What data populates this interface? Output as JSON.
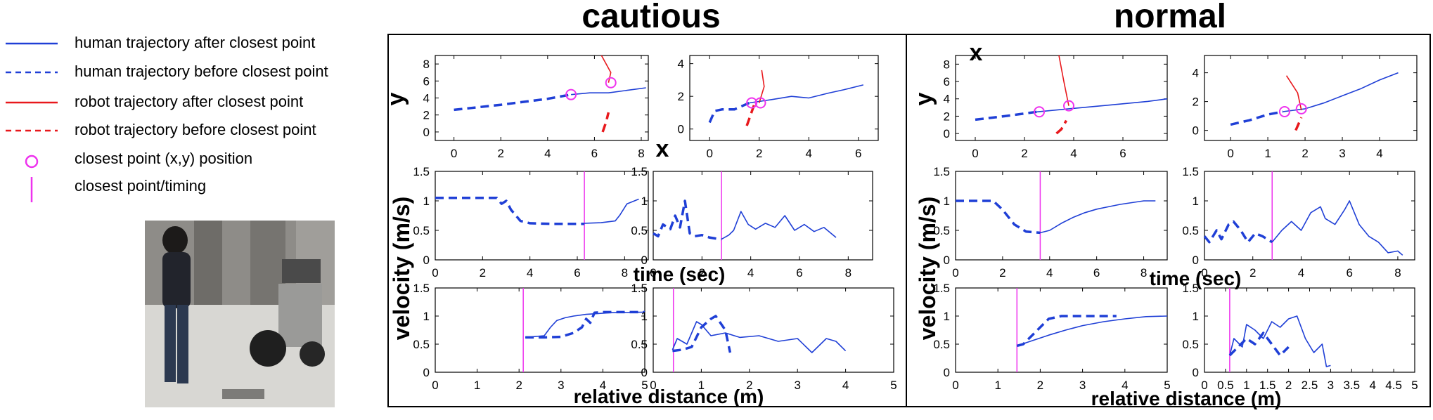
{
  "legend": {
    "items": [
      {
        "label": "human trajectory after closest point",
        "color": "#1f3fd6",
        "style": "solid"
      },
      {
        "label": "human trajectory before closest point",
        "color": "#1f3fd6",
        "style": "dashed"
      },
      {
        "label": "robot trajectory after closest point",
        "color": "#e8181c",
        "style": "solid"
      },
      {
        "label": "robot trajectory before closest point",
        "color": "#e8181c",
        "style": "dashed"
      },
      {
        "label": "closest point (x,y) position",
        "color": "#ee33ee",
        "style": "circle"
      },
      {
        "label": "closest point/timing",
        "color": "#ee33ee",
        "style": "vline"
      }
    ]
  },
  "panels": {
    "cautious_title": "cautious",
    "normal_title": "normal"
  },
  "axis_labels": {
    "y_traj": "y",
    "x_traj": "x",
    "velocity": "velocity (m/s)",
    "time": "time (sec)",
    "distance": "relative distance (m)"
  },
  "colors": {
    "human": "#1f3fd6",
    "robot": "#e8181c",
    "closest": "#ee33ee"
  },
  "chart_data": [
    {
      "id": "cautious-traj-1",
      "type": "line",
      "panel": "cautious",
      "xlim": [
        -0.8,
        8.3
      ],
      "ylim": [
        -1,
        9
      ],
      "xticks": [
        0,
        2,
        4,
        6,
        8
      ],
      "yticks": [
        0,
        2,
        4,
        6,
        8
      ],
      "series": [
        {
          "role": "human-before",
          "x": [
            0,
            2,
            4,
            5
          ],
          "y": [
            2.6,
            3.2,
            3.9,
            4.4
          ]
        },
        {
          "role": "human-after",
          "x": [
            5,
            5.8,
            6.6,
            7.4,
            8.2
          ],
          "y": [
            4.4,
            4.6,
            4.6,
            4.9,
            5.2
          ]
        },
        {
          "role": "robot-before",
          "x": [
            6.35,
            6.5,
            6.6
          ],
          "y": [
            0.0,
            1.2,
            2.3
          ]
        },
        {
          "role": "robot-after",
          "x": [
            6.6,
            6.7,
            6.5,
            6.3
          ],
          "y": [
            5.8,
            7.0,
            8.0,
            9.0
          ]
        }
      ],
      "closest_points": [
        {
          "x": 5.0,
          "y": 4.4
        },
        {
          "x": 6.7,
          "y": 5.8
        }
      ]
    },
    {
      "id": "cautious-traj-2",
      "type": "line",
      "panel": "cautious",
      "xlim": [
        -0.8,
        6.8
      ],
      "ylim": [
        -0.7,
        4.5
      ],
      "xticks": [
        0,
        2,
        4,
        6
      ],
      "yticks": [
        0,
        2,
        4
      ],
      "series": [
        {
          "role": "human-before",
          "x": [
            0,
            0.2,
            0.5,
            1.0,
            1.6
          ],
          "y": [
            0.4,
            1.1,
            1.2,
            1.2,
            1.6
          ]
        },
        {
          "role": "human-after",
          "x": [
            1.6,
            2.5,
            3.3,
            4.0,
            4.8,
            5.4,
            6.2
          ],
          "y": [
            1.6,
            1.8,
            2.0,
            1.9,
            2.2,
            2.4,
            2.7
          ]
        },
        {
          "role": "robot-before",
          "x": [
            1.5,
            1.8
          ],
          "y": [
            0.2,
            1.5
          ]
        },
        {
          "role": "robot-after",
          "x": [
            2.0,
            2.2,
            2.1
          ],
          "y": [
            1.6,
            2.6,
            3.6
          ]
        }
      ],
      "closest_points": [
        {
          "x": 1.7,
          "y": 1.6
        },
        {
          "x": 2.05,
          "y": 1.6
        }
      ]
    },
    {
      "id": "cautious-vel-time-1",
      "type": "line",
      "panel": "cautious",
      "xlim": [
        0,
        9
      ],
      "ylim": [
        0,
        1.5
      ],
      "xticks": [
        0,
        2,
        4,
        6,
        8
      ],
      "yticks": [
        0,
        0.5,
        1,
        1.5
      ],
      "series": [
        {
          "role": "human-before",
          "x": [
            0,
            1,
            2,
            2.6,
            2.8,
            3.0,
            3.2,
            3.6,
            4.0,
            5.0,
            6.3
          ],
          "y": [
            1.05,
            1.05,
            1.05,
            1.05,
            0.95,
            1.0,
            0.85,
            0.66,
            0.62,
            0.61,
            0.61
          ]
        },
        {
          "role": "human-after",
          "x": [
            6.3,
            7.0,
            7.6,
            7.8,
            8.1,
            8.6
          ],
          "y": [
            0.62,
            0.63,
            0.66,
            0.76,
            0.95,
            1.03
          ]
        }
      ],
      "timing": 6.3
    },
    {
      "id": "cautious-vel-time-2",
      "type": "line",
      "panel": "cautious",
      "xlim": [
        0,
        9
      ],
      "ylim": [
        0,
        1.5
      ],
      "xticks": [
        0,
        2,
        4,
        6,
        8
      ],
      "yticks": [
        0,
        0.5,
        1,
        1.5
      ],
      "series": [
        {
          "role": "human-before",
          "x": [
            0,
            0.2,
            0.4,
            0.7,
            0.9,
            1.1,
            1.3,
            1.5,
            1.7,
            2.0,
            2.3,
            2.6,
            2.8
          ],
          "y": [
            0.45,
            0.4,
            0.6,
            0.52,
            0.75,
            0.55,
            1.0,
            0.45,
            0.4,
            0.42,
            0.38,
            0.36,
            0.35
          ]
        },
        {
          "role": "human-after",
          "x": [
            2.8,
            3.1,
            3.3,
            3.6,
            3.9,
            4.2,
            4.6,
            5.0,
            5.4,
            5.8,
            6.2,
            6.6,
            7.0,
            7.5
          ],
          "y": [
            0.35,
            0.42,
            0.5,
            0.82,
            0.6,
            0.52,
            0.62,
            0.55,
            0.75,
            0.5,
            0.6,
            0.48,
            0.55,
            0.38
          ]
        }
      ],
      "timing": 2.8
    },
    {
      "id": "cautious-vel-dist-1",
      "type": "line",
      "panel": "cautious",
      "xlim": [
        0,
        5
      ],
      "ylim": [
        0,
        1.5
      ],
      "xticks": [
        0,
        1,
        2,
        3,
        4,
        5
      ],
      "yticks": [
        0,
        0.5,
        1,
        1.5
      ],
      "series": [
        {
          "role": "human-before",
          "x": [
            2.15,
            2.6,
            3.0,
            3.3,
            3.5,
            3.6,
            3.7,
            3.8,
            4.0,
            4.4,
            5.0
          ],
          "y": [
            0.62,
            0.62,
            0.63,
            0.7,
            0.8,
            0.95,
            0.88,
            1.06,
            1.07,
            1.07,
            1.07
          ]
        },
        {
          "role": "human-after",
          "x": [
            2.15,
            2.6,
            2.75,
            2.9,
            3.1,
            3.3,
            3.6,
            4.2,
            5.0
          ],
          "y": [
            0.62,
            0.65,
            0.8,
            0.92,
            0.97,
            1.0,
            1.03,
            1.06,
            1.07
          ]
        }
      ],
      "timing": 2.1
    },
    {
      "id": "cautious-vel-dist-2",
      "type": "line",
      "panel": "cautious",
      "xlim": [
        0,
        5
      ],
      "ylim": [
        0,
        1.5
      ],
      "xticks": [
        0,
        1,
        2,
        3,
        4,
        5
      ],
      "yticks": [
        0,
        0.5,
        1,
        1.5
      ],
      "series": [
        {
          "role": "human-before",
          "x": [
            0.4,
            0.6,
            0.8,
            1.0,
            1.2,
            1.3,
            1.5,
            1.6
          ],
          "y": [
            0.38,
            0.4,
            0.45,
            0.8,
            0.95,
            1.0,
            0.75,
            0.35
          ]
        },
        {
          "role": "human-after",
          "x": [
            0.4,
            0.5,
            0.7,
            0.9,
            1.0,
            1.2,
            1.5,
            1.8,
            2.2,
            2.6,
            3.0,
            3.3,
            3.6,
            3.8,
            4.0
          ],
          "y": [
            0.4,
            0.6,
            0.5,
            0.9,
            0.85,
            0.65,
            0.7,
            0.62,
            0.65,
            0.55,
            0.6,
            0.35,
            0.6,
            0.55,
            0.38
          ]
        }
      ],
      "timing": 0.42
    },
    {
      "id": "normal-traj-1",
      "type": "line",
      "panel": "normal",
      "xlim": [
        -0.8,
        7.8
      ],
      "ylim": [
        -0.8,
        9
      ],
      "xticks": [
        0,
        2,
        4,
        6
      ],
      "yticks": [
        0,
        2,
        4,
        6,
        8
      ],
      "series": [
        {
          "role": "human-before",
          "x": [
            0,
            1.2,
            2.5
          ],
          "y": [
            1.6,
            2.0,
            2.5
          ]
        },
        {
          "role": "human-after",
          "x": [
            2.5,
            4.0,
            5.5,
            7.0,
            7.8
          ],
          "y": [
            2.5,
            2.9,
            3.3,
            3.7,
            4.0
          ]
        },
        {
          "role": "robot-before",
          "x": [
            3.3,
            3.5,
            3.7
          ],
          "y": [
            0.0,
            0.5,
            1.5
          ]
        },
        {
          "role": "robot-after",
          "x": [
            3.8,
            3.6,
            3.4
          ],
          "y": [
            3.2,
            6.0,
            9.0
          ]
        }
      ],
      "closest_points": [
        {
          "x": 2.6,
          "y": 2.5
        },
        {
          "x": 3.8,
          "y": 3.2
        }
      ]
    },
    {
      "id": "normal-traj-2",
      "type": "line",
      "panel": "normal",
      "xlim": [
        -0.7,
        5.0
      ],
      "ylim": [
        -0.7,
        5.2
      ],
      "xticks": [
        0,
        1,
        2,
        3,
        4
      ],
      "yticks": [
        0,
        2,
        4
      ],
      "series": [
        {
          "role": "human-before",
          "x": [
            0,
            0.5,
            1.0,
            1.4
          ],
          "y": [
            0.4,
            0.7,
            1.1,
            1.3
          ]
        },
        {
          "role": "human-after",
          "x": [
            1.4,
            2.0,
            2.5,
            3.0,
            3.5,
            4.0,
            4.5
          ],
          "y": [
            1.3,
            1.5,
            1.9,
            2.4,
            2.9,
            3.5,
            4.0
          ]
        },
        {
          "role": "robot-before",
          "x": [
            1.75,
            1.9
          ],
          "y": [
            0.0,
            0.9
          ]
        },
        {
          "role": "robot-after",
          "x": [
            1.9,
            1.8,
            1.5
          ],
          "y": [
            1.4,
            2.6,
            3.8
          ]
        }
      ],
      "closest_points": [
        {
          "x": 1.45,
          "y": 1.3
        },
        {
          "x": 1.9,
          "y": 1.5
        }
      ]
    },
    {
      "id": "normal-vel-time-1",
      "type": "line",
      "panel": "normal",
      "xlim": [
        0,
        9
      ],
      "ylim": [
        0,
        1.5
      ],
      "xticks": [
        0,
        2,
        4,
        6,
        8
      ],
      "yticks": [
        0,
        0.5,
        1,
        1.5
      ],
      "series": [
        {
          "role": "human-before",
          "x": [
            0,
            0.8,
            1.6,
            2.0,
            2.5,
            3.0,
            3.6
          ],
          "y": [
            1.0,
            1.0,
            1.0,
            0.85,
            0.6,
            0.48,
            0.46
          ]
        },
        {
          "role": "human-after",
          "x": [
            3.6,
            4.0,
            4.5,
            5.0,
            5.5,
            6.0,
            6.5,
            7.0,
            7.5,
            8.0,
            8.5
          ],
          "y": [
            0.46,
            0.5,
            0.62,
            0.72,
            0.8,
            0.86,
            0.9,
            0.94,
            0.97,
            1.0,
            1.0
          ]
        }
      ],
      "timing": 3.6
    },
    {
      "id": "normal-vel-time-2",
      "type": "line",
      "panel": "normal",
      "xlim": [
        0,
        8.7
      ],
      "ylim": [
        0,
        1.5
      ],
      "xticks": [
        0,
        2,
        4,
        6,
        8
      ],
      "yticks": [
        0,
        0.5,
        1,
        1.5
      ],
      "series": [
        {
          "role": "human-before",
          "x": [
            0,
            0.2,
            0.5,
            0.7,
            1.0,
            1.2,
            1.5,
            1.8,
            2.1,
            2.4,
            2.8
          ],
          "y": [
            0.4,
            0.3,
            0.5,
            0.35,
            0.6,
            0.65,
            0.5,
            0.3,
            0.45,
            0.4,
            0.3
          ]
        },
        {
          "role": "human-after",
          "x": [
            2.8,
            3.2,
            3.6,
            4.0,
            4.4,
            4.8,
            5.0,
            5.4,
            5.8,
            6.0,
            6.4,
            6.8,
            7.2,
            7.6,
            8.0,
            8.2
          ],
          "y": [
            0.3,
            0.5,
            0.65,
            0.5,
            0.8,
            0.9,
            0.7,
            0.6,
            0.85,
            1.0,
            0.6,
            0.4,
            0.3,
            0.12,
            0.15,
            0.08
          ]
        }
      ],
      "timing": 2.8
    },
    {
      "id": "normal-vel-dist-1",
      "type": "line",
      "panel": "normal",
      "xlim": [
        0,
        5
      ],
      "ylim": [
        0,
        1.5
      ],
      "xticks": [
        0,
        1,
        2,
        3,
        4,
        5
      ],
      "yticks": [
        0,
        0.5,
        1,
        1.5
      ],
      "series": [
        {
          "role": "human-before",
          "x": [
            1.45,
            1.6,
            1.8,
            2.0,
            2.2,
            2.5,
            3.0,
            3.5,
            3.8
          ],
          "y": [
            0.47,
            0.5,
            0.65,
            0.8,
            0.95,
            1.0,
            1.0,
            1.0,
            1.0
          ]
        },
        {
          "role": "human-after",
          "x": [
            1.45,
            1.8,
            2.2,
            2.6,
            3.0,
            3.5,
            4.0,
            4.5,
            5.0
          ],
          "y": [
            0.47,
            0.56,
            0.66,
            0.75,
            0.83,
            0.9,
            0.95,
            0.99,
            1.0
          ]
        }
      ],
      "timing": 1.45
    },
    {
      "id": "normal-vel-dist-2",
      "type": "line",
      "panel": "normal",
      "xlim": [
        0,
        5
      ],
      "ylim": [
        0,
        1.5
      ],
      "xticks": [
        0,
        0.5,
        1,
        1.5,
        2,
        2.5,
        3,
        3.5,
        4,
        4.5,
        5
      ],
      "yticks": [
        0,
        0.5,
        1,
        1.5
      ],
      "series": [
        {
          "role": "human-before",
          "x": [
            0.6,
            0.8,
            1.0,
            1.2,
            1.4,
            1.6,
            1.8,
            2.0
          ],
          "y": [
            0.3,
            0.45,
            0.6,
            0.5,
            0.7,
            0.5,
            0.3,
            0.45
          ]
        },
        {
          "role": "human-after",
          "x": [
            0.6,
            0.7,
            0.9,
            1.0,
            1.2,
            1.4,
            1.6,
            1.8,
            2.0,
            2.2,
            2.4,
            2.6,
            2.8,
            2.9,
            3.0
          ],
          "y": [
            0.3,
            0.6,
            0.45,
            0.85,
            0.75,
            0.6,
            0.9,
            0.8,
            0.95,
            1.0,
            0.6,
            0.35,
            0.5,
            0.1,
            0.12
          ]
        }
      ],
      "timing": 0.6
    }
  ]
}
